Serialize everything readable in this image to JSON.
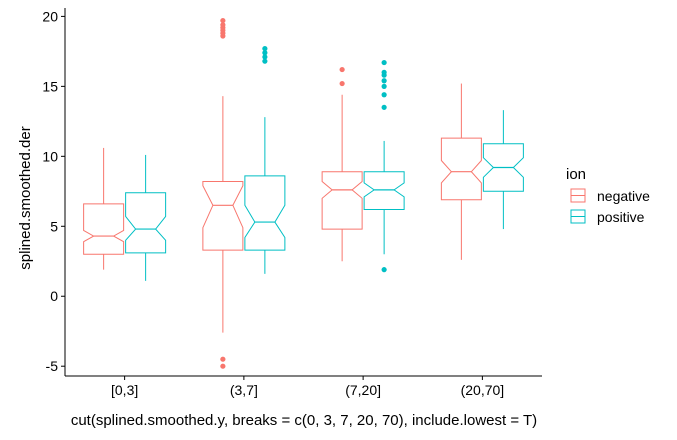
{
  "chart_data": {
    "type": "boxplot",
    "notched": true,
    "xlabel": "cut(splined.smoothed.y, breaks = c(0, 3, 7, 20, 70), include.lowest = T)",
    "ylabel": "splined.smoothed.der",
    "categories": [
      "[0,3]",
      "(3,7]",
      "(7,20]",
      "(20,70]"
    ],
    "ylim": [
      -5.7,
      20.6
    ],
    "yticks": [
      -5,
      0,
      5,
      10,
      15,
      20
    ],
    "grid": false,
    "legend": {
      "title": "ion",
      "position": "right"
    },
    "series": [
      {
        "name": "negative",
        "color": "#F8766D",
        "boxes": [
          {
            "lower_whisker": 1.9,
            "q1": 3.0,
            "median": 4.3,
            "q3": 6.6,
            "upper_whisker": 10.6,
            "notch_low": 3.9,
            "notch_high": 4.7,
            "outliers": []
          },
          {
            "lower_whisker": -2.6,
            "q1": 3.3,
            "median": 6.5,
            "q3": 8.2,
            "upper_whisker": 14.3,
            "notch_low": 4.9,
            "notch_high": 7.9,
            "outliers": [
              -5.0,
              -4.5,
              18.6,
              18.8,
              19.0,
              19.2,
              19.4,
              19.7
            ]
          },
          {
            "lower_whisker": 2.5,
            "q1": 4.8,
            "median": 7.6,
            "q3": 8.9,
            "upper_whisker": 14.4,
            "notch_low": 7.0,
            "notch_high": 8.2,
            "outliers": [
              15.2,
              16.2
            ]
          },
          {
            "lower_whisker": 2.6,
            "q1": 6.9,
            "median": 8.9,
            "q3": 11.3,
            "upper_whisker": 15.2,
            "notch_low": 8.1,
            "notch_high": 9.7,
            "outliers": []
          }
        ]
      },
      {
        "name": "positive",
        "color": "#00BFC4",
        "boxes": [
          {
            "lower_whisker": 1.1,
            "q1": 3.1,
            "median": 4.8,
            "q3": 7.4,
            "upper_whisker": 10.1,
            "notch_low": 4.0,
            "notch_high": 5.7,
            "outliers": []
          },
          {
            "lower_whisker": 1.6,
            "q1": 3.3,
            "median": 5.3,
            "q3": 8.6,
            "upper_whisker": 12.8,
            "notch_low": 4.2,
            "notch_high": 6.5,
            "outliers": [
              16.8,
              17.1,
              17.4,
              17.7
            ]
          },
          {
            "lower_whisker": 3.0,
            "q1": 6.2,
            "median": 7.6,
            "q3": 8.9,
            "upper_whisker": 11.1,
            "notch_low": 7.1,
            "notch_high": 8.1,
            "outliers": [
              1.9,
              13.5,
              14.4,
              15.0,
              15.4,
              15.8,
              16.0,
              16.7
            ]
          },
          {
            "lower_whisker": 4.8,
            "q1": 7.5,
            "median": 9.2,
            "q3": 10.9,
            "upper_whisker": 13.3,
            "notch_low": 8.5,
            "notch_high": 9.9,
            "outliers": []
          }
        ]
      }
    ]
  }
}
